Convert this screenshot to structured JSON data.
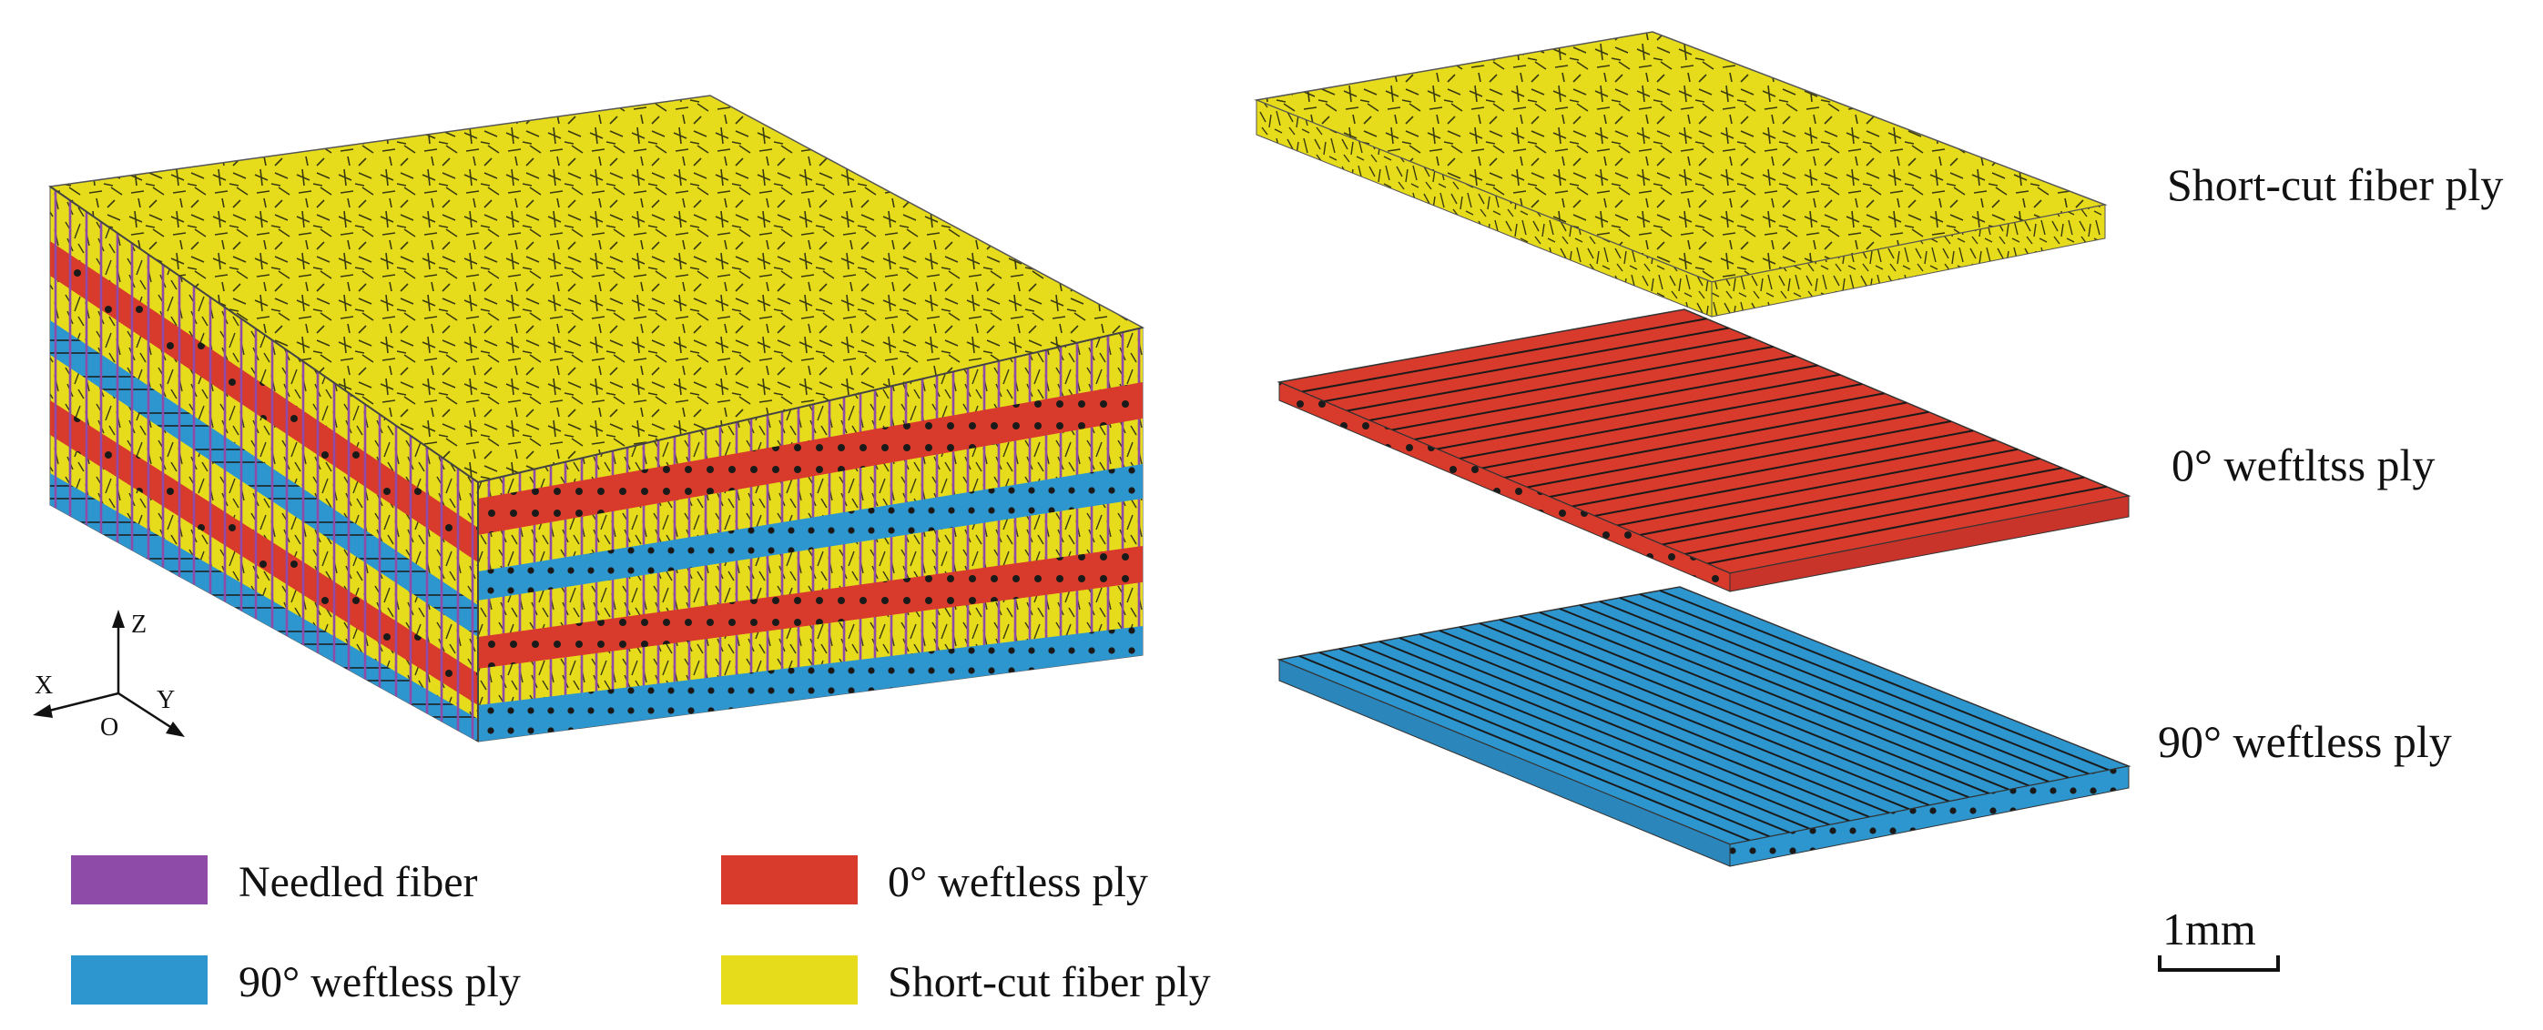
{
  "colors": {
    "needled_fiber": "#8E4BA8",
    "weftless_0": "#D83A2C",
    "weftless_90": "#2E96CF",
    "short_cut": "#E6DC1C",
    "short_cut_side": "#C9BF14",
    "fiber_line": "#222222"
  },
  "axes": {
    "x": "X",
    "y": "Y",
    "z": "Z",
    "origin": "O"
  },
  "plies": [
    {
      "label": "Short-cut fiber ply",
      "type": "short-cut",
      "icon": "short-cut-ply-block"
    },
    {
      "label": "0° weftltss ply",
      "type": "weftless-0",
      "icon": "zero-degree-ply-block"
    },
    {
      "label": "90° weftless ply",
      "type": "weftless-90",
      "icon": "ninety-degree-ply-block"
    }
  ],
  "legend": [
    {
      "label": "Needled fiber",
      "color": "#8E4BA8"
    },
    {
      "label": "0° weftless ply",
      "color": "#D83A2C"
    },
    {
      "label": "90° weftless ply",
      "color": "#2E96CF"
    },
    {
      "label": "Short-cut fiber ply",
      "color": "#E6DC1C"
    }
  ],
  "scale_bar": {
    "label": "1mm"
  }
}
